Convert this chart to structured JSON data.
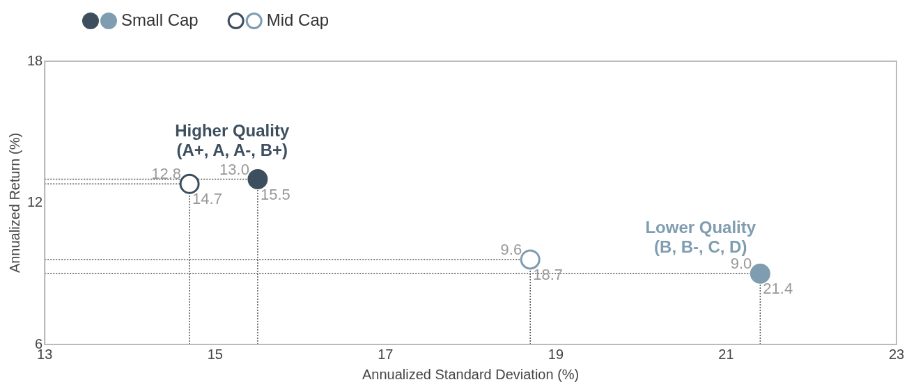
{
  "chart_data": {
    "type": "scatter",
    "xlabel": "Annualized Standard Deviation (%)",
    "ylabel": "Annualized Return (%)",
    "xlim": [
      13,
      23
    ],
    "xticks": [
      13,
      15,
      17,
      19,
      21,
      23
    ],
    "ylim": [
      6,
      18
    ],
    "yticks": [
      6,
      12,
      18
    ],
    "grid": false,
    "legend": "top left",
    "marker": "circle",
    "series": [
      {
        "name": "Small Cap",
        "colors": [
          "#3d4f5f",
          "#7f9db1"
        ],
        "x": [
          15.5,
          21.4
        ],
        "values": [
          13.0,
          9.0
        ],
        "value_labels": [
          "13.0",
          "9.0"
        ]
      },
      {
        "name": "Mid Cap",
        "colors": [
          "#3d4f5f",
          "#7f9db1"
        ],
        "x": [
          14.7,
          18.7
        ],
        "values": [
          12.8,
          9.6
        ],
        "value_labels": [
          "12.8",
          "9.6"
        ]
      }
    ],
    "ref_lines": [
      {
        "axis": "y",
        "value": 13.0,
        "color": "#555555",
        "line_style": "dotted"
      },
      {
        "axis": "y",
        "value": 12.8,
        "color": "#555555",
        "line_style": "dotted"
      },
      {
        "axis": "y",
        "value": 9.6,
        "color": "#555555",
        "line_style": "dotted"
      },
      {
        "axis": "y",
        "value": 9.0,
        "color": "#555555",
        "line_style": "dotted"
      },
      {
        "axis": "x",
        "value": 14.7,
        "color": "#555555",
        "line_style": "dotted"
      },
      {
        "axis": "x",
        "value": 15.5,
        "color": "#555555",
        "line_style": "dotted"
      },
      {
        "axis": "x",
        "value": 18.7,
        "color": "#555555",
        "line_style": "dotted"
      },
      {
        "axis": "x",
        "value": 21.4,
        "color": "#555555",
        "line_style": "dotted"
      }
    ],
    "annotations": [
      "Higher Quality\n(A+, A, A-, B+)",
      "Lower Quality\n(B, B-, C, D)",
      {
        "text": "15.5",
        "x": 15.5,
        "y": 13.0
      },
      {
        "text": "14.7",
        "x": 14.7,
        "y": 12.8
      },
      {
        "text": "18.7",
        "x": 18.7,
        "y": 9.6
      },
      {
        "text": "21.4",
        "x": 21.4,
        "y": 9.0
      }
    ]
  }
}
